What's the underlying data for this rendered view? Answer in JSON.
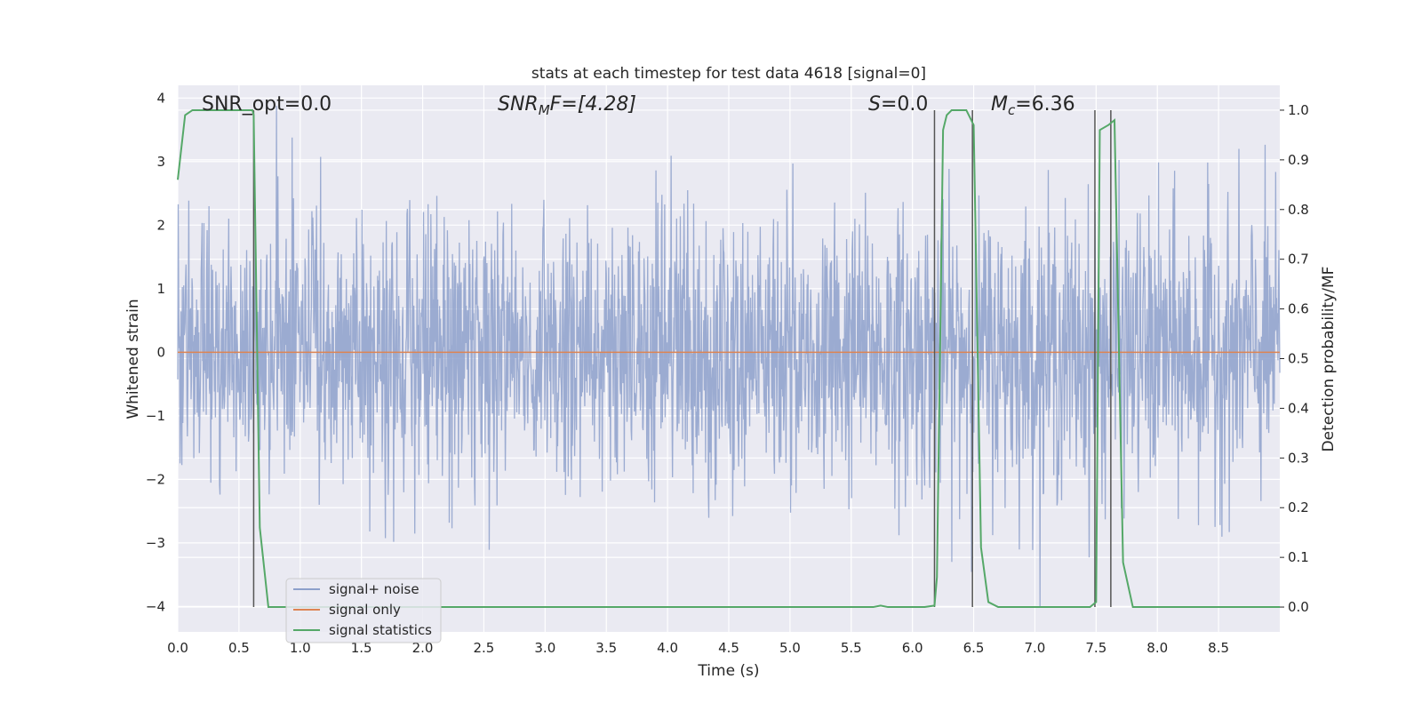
{
  "chart_data": {
    "type": "line",
    "title": "stats at each timestep for test data 4618 [signal=0]",
    "xlabel": "Time (s)",
    "ylabel_left": "Whitened strain",
    "ylabel_right": "Detection probability/MF",
    "xlim": [
      0.0,
      9.0
    ],
    "ylim_left": [
      -4.4,
      4.2
    ],
    "ylim_right": [
      -0.05,
      1.05
    ],
    "grid": true,
    "legend_position": "lower-left",
    "x_ticks": [
      "0.0",
      "0.5",
      "1.0",
      "1.5",
      "2.0",
      "2.5",
      "3.0",
      "3.5",
      "4.0",
      "4.5",
      "5.0",
      "5.5",
      "6.0",
      "6.5",
      "7.0",
      "7.5",
      "8.0",
      "8.5"
    ],
    "y_ticks_left": [
      "−4",
      "−3",
      "−2",
      "−1",
      "0",
      "1",
      "2",
      "3",
      "4"
    ],
    "y_ticks_right": [
      "0.0",
      "0.1",
      "0.2",
      "0.3",
      "0.4",
      "0.5",
      "0.6",
      "0.7",
      "0.8",
      "0.9",
      "1.0"
    ],
    "annotations": {
      "snr_opt": "SNR_opt=0.0",
      "snr_mf_main": "SNR",
      "snr_mf_sub": "M",
      "snr_mf_rest": "F=[4.28]",
      "s_main": "S",
      "s_rest": "=0.0",
      "mc_main": "M",
      "mc_sub": "c",
      "mc_rest": "=6.36"
    },
    "series": [
      {
        "name": "signal+ noise",
        "color": "#8da0cb",
        "axis": "left",
        "kind": "noise",
        "typical_amplitude": 1.1,
        "max_abs": 4.0
      },
      {
        "name": "signal only",
        "color": "#dd8452",
        "axis": "left",
        "x": [
          0.0,
          9.0
        ],
        "y": [
          0.0,
          0.0
        ]
      },
      {
        "name": "signal statistics",
        "color": "#55a868",
        "axis": "right",
        "x": [
          0.0,
          0.06,
          0.12,
          0.2,
          0.3,
          0.4,
          0.5,
          0.56,
          0.61,
          0.62,
          0.67,
          0.74,
          0.8,
          1.0,
          2.0,
          3.0,
          4.0,
          5.0,
          5.5,
          5.68,
          5.74,
          5.8,
          6.0,
          6.1,
          6.18,
          6.2,
          6.25,
          6.28,
          6.32,
          6.36,
          6.44,
          6.5,
          6.56,
          6.62,
          6.7,
          7.0,
          7.3,
          7.45,
          7.5,
          7.53,
          7.6,
          7.65,
          7.72,
          7.8,
          8.0,
          8.5,
          9.0
        ],
        "y": [
          0.86,
          0.99,
          1.0,
          1.0,
          1.0,
          1.0,
          1.0,
          1.0,
          1.0,
          0.99,
          0.16,
          0.0,
          0.0,
          0.0,
          0.0,
          0.0,
          0.0,
          0.0,
          0.0,
          0.0,
          0.003,
          0.0,
          0.0,
          0.0,
          0.003,
          0.06,
          0.96,
          0.99,
          1.0,
          1.0,
          1.0,
          0.97,
          0.12,
          0.01,
          0.0,
          0.0,
          0.0,
          0.0,
          0.01,
          0.96,
          0.97,
          0.98,
          0.09,
          0.0,
          0.0,
          0.0,
          0.0
        ]
      }
    ],
    "vertical_markers": [
      {
        "x": 0.62,
        "y_from": 0.0,
        "y_to": 1.0
      },
      {
        "x": 6.18,
        "y_from": 0.0,
        "y_to": 1.0
      },
      {
        "x": 6.49,
        "y_from": 0.0,
        "y_to": 1.0
      },
      {
        "x": 7.49,
        "y_from": 0.0,
        "y_to": 1.0
      },
      {
        "x": 7.62,
        "y_from": 0.0,
        "y_to": 1.0
      }
    ]
  },
  "legend": {
    "items": [
      {
        "label": "signal+ noise",
        "color": "#8da0cb"
      },
      {
        "label": "signal only",
        "color": "#dd8452"
      },
      {
        "label": "signal statistics",
        "color": "#55a868"
      }
    ]
  }
}
